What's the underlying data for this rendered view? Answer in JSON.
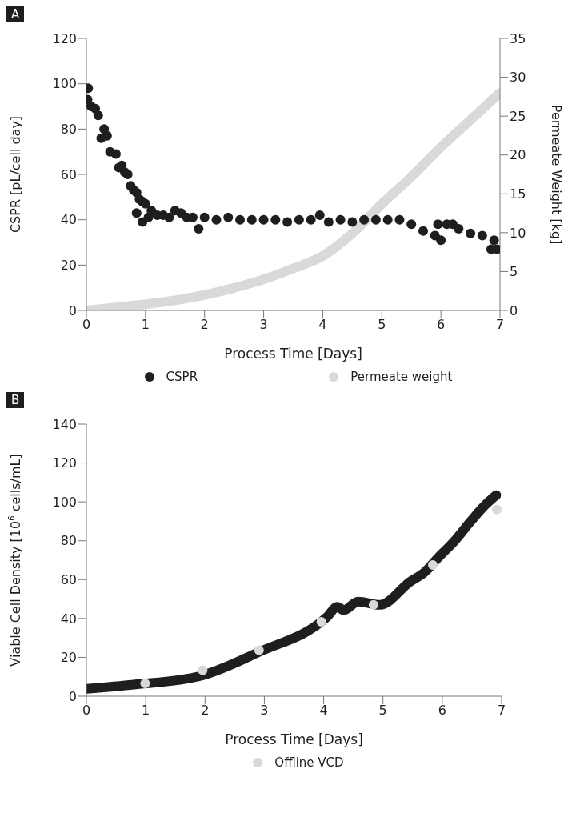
{
  "chart_data": [
    {
      "type": "scatter",
      "title": "A",
      "xlabel": "Process Time [Days]",
      "ylabel": "CSPR [pL/cell day]",
      "y2label": "Permeate Weight [kg]",
      "xlim": [
        0,
        7
      ],
      "xticks": [
        0,
        1,
        2,
        3,
        4,
        5,
        6,
        7
      ],
      "ylim": [
        0,
        120
      ],
      "yticks": [
        0,
        20,
        40,
        60,
        80,
        100,
        120
      ],
      "y2lim": [
        0,
        35
      ],
      "y2ticks": [
        0,
        5,
        10,
        15,
        20,
        25,
        30,
        35
      ],
      "legend": "bottom",
      "series": [
        {
          "name": "CSPR",
          "marker": "circle",
          "color": "#1e1e1e",
          "x": [
            0.02,
            0.03,
            0.08,
            0.15,
            0.2,
            0.25,
            0.3,
            0.35,
            0.4,
            0.5,
            0.55,
            0.6,
            0.65,
            0.7,
            0.75,
            0.8,
            0.85,
            0.9,
            0.95,
            1.0,
            0.85,
            0.95,
            1.05,
            1.1,
            1.2,
            1.3,
            1.4,
            1.5,
            1.6,
            1.7,
            1.8,
            1.9,
            2.0,
            2.2,
            2.4,
            2.6,
            2.8,
            3.0,
            3.2,
            3.4,
            3.6,
            3.8,
            3.95,
            4.1,
            4.3,
            4.5,
            4.7,
            4.9,
            5.1,
            5.3,
            5.5,
            5.7,
            5.9,
            6.0,
            5.95,
            6.1,
            6.2,
            6.3,
            6.5,
            6.7,
            6.9,
            6.85,
            6.95
          ],
          "values": [
            93,
            98,
            90,
            89,
            86,
            76,
            80,
            77,
            70,
            69,
            63,
            64,
            61,
            60,
            55,
            53,
            52,
            49,
            48,
            47,
            43,
            39,
            41,
            44,
            42,
            42,
            41,
            44,
            43,
            41,
            41,
            36,
            41,
            40,
            41,
            40,
            40,
            40,
            40,
            39,
            40,
            40,
            42,
            39,
            40,
            39,
            40,
            40,
            40,
            40,
            38,
            35,
            33,
            31,
            38,
            38,
            38,
            36,
            34,
            33,
            31,
            27,
            27
          ]
        },
        {
          "name": "Permeate weight",
          "type": "line",
          "axis": "y2",
          "marker": "none",
          "color": "#d9d9d9",
          "x": [
            0,
            0.5,
            1,
            1.5,
            2,
            2.5,
            3,
            3.5,
            4,
            4.5,
            5,
            5.5,
            6,
            6.5,
            7
          ],
          "values": [
            0,
            0.4,
            0.8,
            1.3,
            2,
            2.9,
            4,
            5.4,
            7,
            9.9,
            13.7,
            17.2,
            21,
            24.5,
            28
          ]
        }
      ]
    },
    {
      "type": "line",
      "title": "B",
      "xlabel": "Process Time [Days]",
      "ylabel": "Viable Cell Density [10$^{6}$ cells/mL]",
      "xlim": [
        0,
        7
      ],
      "xticks": [
        0,
        1,
        2,
        3,
        4,
        5,
        6,
        7
      ],
      "ylim": [
        0,
        140
      ],
      "yticks": [
        0,
        20,
        40,
        60,
        80,
        100,
        120,
        140
      ],
      "legend": "bottom",
      "series": [
        {
          "marker": "none",
          "color": "#1e1e1e",
          "x": [
            0,
            0.8,
            1.92,
            2.9,
            4.06,
            4.23,
            4.34,
            4.58,
            4.95,
            5.46,
            5.69,
            5.93,
            6.21,
            6.49,
            6.72,
            6.91
          ],
          "values": [
            3.8,
            6,
            10.4,
            22.6,
            40.9,
            46,
            44.3,
            48.7,
            47,
            59,
            63.5,
            71.3,
            80,
            90.4,
            98.3,
            103.5
          ]
        },
        {
          "name": "Offline VCD",
          "type": "scatter",
          "marker": "circle",
          "color": "#d9d9d9",
          "x": [
            0.99,
            1.96,
            2.91,
            3.96,
            4.84,
            5.84,
            6.92
          ],
          "values": [
            6.6,
            13.4,
            23.7,
            38.3,
            47,
            67.5,
            96
          ]
        }
      ]
    }
  ]
}
